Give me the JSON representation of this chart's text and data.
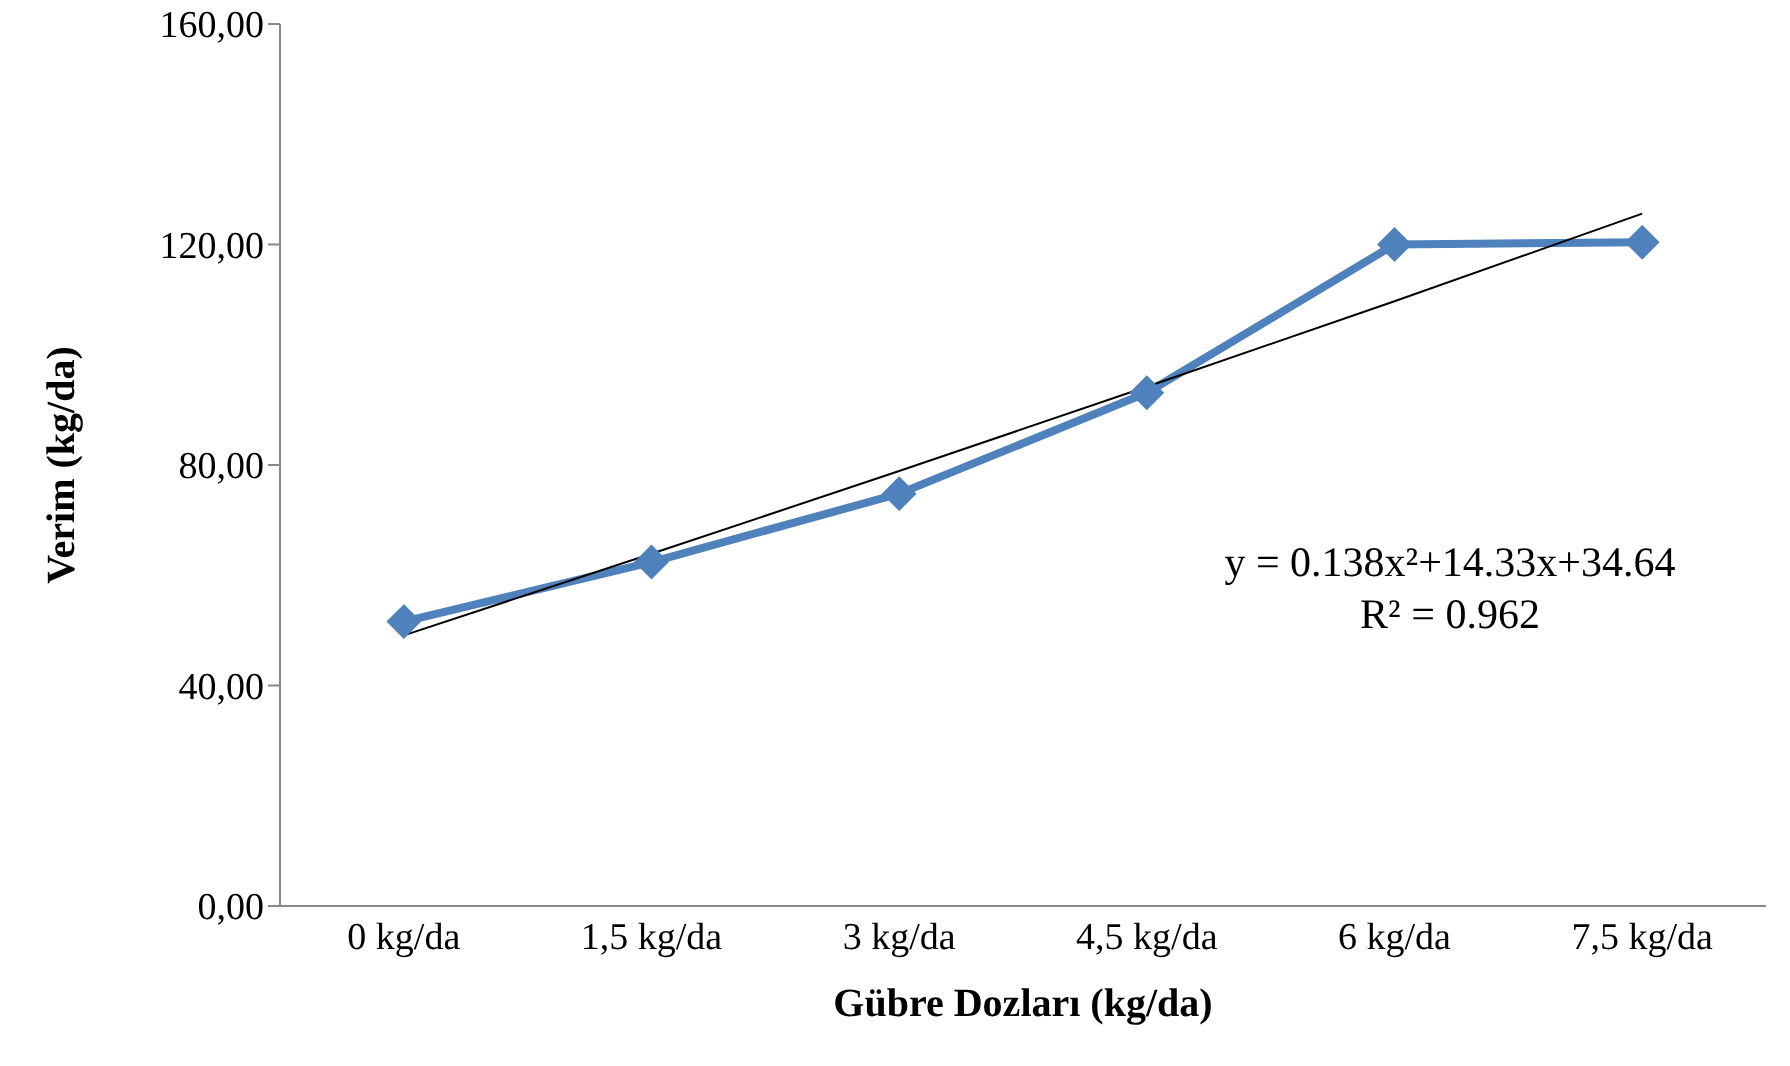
{
  "chart_data": {
    "type": "line",
    "xlabel": "Gübre Dozları (kg/da)",
    "ylabel": "Verim (kg/da)",
    "categories": [
      "0 kg/da",
      "1,5 kg/da",
      "3 kg/da",
      "4,5 kg/da",
      "6 kg/da",
      "7,5 kg/da"
    ],
    "series": [
      {
        "color": "#4f81bd",
        "marker": "diamond",
        "values": [
          51.6,
          62.4,
          74.8,
          93.1,
          120.0,
          120.4
        ]
      },
      {
        "color": "#000000",
        "marker": "none",
        "values": [
          49.1,
          63.9,
          78.9,
          94.2,
          109.7,
          125.6
        ]
      }
    ],
    "ylim": [
      0,
      160
    ],
    "yticks": [
      {
        "value": 0,
        "label": "0,00"
      },
      {
        "value": 40,
        "label": "40,00"
      },
      {
        "value": 80,
        "label": "80,00"
      },
      {
        "value": 120,
        "label": "120,00"
      },
      {
        "value": 160,
        "label": "160,00"
      }
    ],
    "grid": false,
    "legend": false,
    "annotations": [
      "y = 0.138x²+14.33x+34.64",
      "R² = 0.962"
    ]
  }
}
